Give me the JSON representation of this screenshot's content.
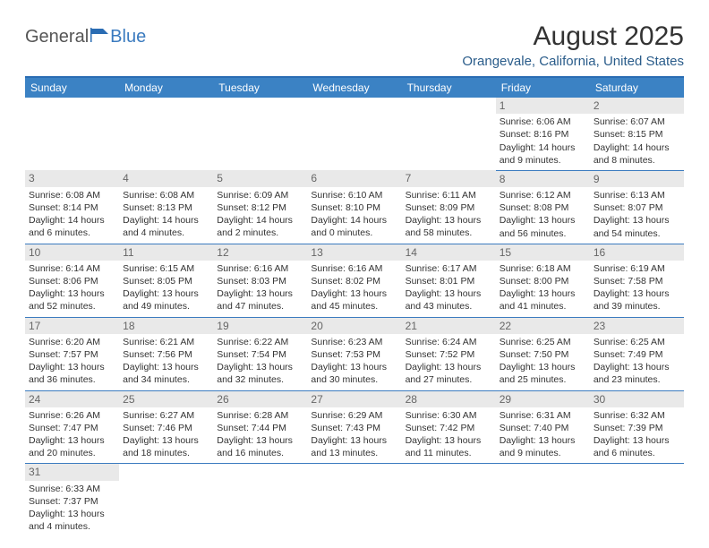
{
  "logo": {
    "text1": "General",
    "text2": "Blue",
    "icon_color": "#2a6cb3"
  },
  "title": "August 2025",
  "location": "Orangevale, California, United States",
  "header_bg": "#3b82c4",
  "header_text_color": "#ffffff",
  "border_color": "#3b7bbf",
  "daynum_bg": "#e9e9e9",
  "day_labels": [
    "Sunday",
    "Monday",
    "Tuesday",
    "Wednesday",
    "Thursday",
    "Friday",
    "Saturday"
  ],
  "weeks": [
    [
      null,
      null,
      null,
      null,
      null,
      {
        "n": "1",
        "sr": "6:06 AM",
        "ss": "8:16 PM",
        "dl": "14 hours and 9 minutes."
      },
      {
        "n": "2",
        "sr": "6:07 AM",
        "ss": "8:15 PM",
        "dl": "14 hours and 8 minutes."
      }
    ],
    [
      {
        "n": "3",
        "sr": "6:08 AM",
        "ss": "8:14 PM",
        "dl": "14 hours and 6 minutes."
      },
      {
        "n": "4",
        "sr": "6:08 AM",
        "ss": "8:13 PM",
        "dl": "14 hours and 4 minutes."
      },
      {
        "n": "5",
        "sr": "6:09 AM",
        "ss": "8:12 PM",
        "dl": "14 hours and 2 minutes."
      },
      {
        "n": "6",
        "sr": "6:10 AM",
        "ss": "8:10 PM",
        "dl": "14 hours and 0 minutes."
      },
      {
        "n": "7",
        "sr": "6:11 AM",
        "ss": "8:09 PM",
        "dl": "13 hours and 58 minutes."
      },
      {
        "n": "8",
        "sr": "6:12 AM",
        "ss": "8:08 PM",
        "dl": "13 hours and 56 minutes."
      },
      {
        "n": "9",
        "sr": "6:13 AM",
        "ss": "8:07 PM",
        "dl": "13 hours and 54 minutes."
      }
    ],
    [
      {
        "n": "10",
        "sr": "6:14 AM",
        "ss": "8:06 PM",
        "dl": "13 hours and 52 minutes."
      },
      {
        "n": "11",
        "sr": "6:15 AM",
        "ss": "8:05 PM",
        "dl": "13 hours and 49 minutes."
      },
      {
        "n": "12",
        "sr": "6:16 AM",
        "ss": "8:03 PM",
        "dl": "13 hours and 47 minutes."
      },
      {
        "n": "13",
        "sr": "6:16 AM",
        "ss": "8:02 PM",
        "dl": "13 hours and 45 minutes."
      },
      {
        "n": "14",
        "sr": "6:17 AM",
        "ss": "8:01 PM",
        "dl": "13 hours and 43 minutes."
      },
      {
        "n": "15",
        "sr": "6:18 AM",
        "ss": "8:00 PM",
        "dl": "13 hours and 41 minutes."
      },
      {
        "n": "16",
        "sr": "6:19 AM",
        "ss": "7:58 PM",
        "dl": "13 hours and 39 minutes."
      }
    ],
    [
      {
        "n": "17",
        "sr": "6:20 AM",
        "ss": "7:57 PM",
        "dl": "13 hours and 36 minutes."
      },
      {
        "n": "18",
        "sr": "6:21 AM",
        "ss": "7:56 PM",
        "dl": "13 hours and 34 minutes."
      },
      {
        "n": "19",
        "sr": "6:22 AM",
        "ss": "7:54 PM",
        "dl": "13 hours and 32 minutes."
      },
      {
        "n": "20",
        "sr": "6:23 AM",
        "ss": "7:53 PM",
        "dl": "13 hours and 30 minutes."
      },
      {
        "n": "21",
        "sr": "6:24 AM",
        "ss": "7:52 PM",
        "dl": "13 hours and 27 minutes."
      },
      {
        "n": "22",
        "sr": "6:25 AM",
        "ss": "7:50 PM",
        "dl": "13 hours and 25 minutes."
      },
      {
        "n": "23",
        "sr": "6:25 AM",
        "ss": "7:49 PM",
        "dl": "13 hours and 23 minutes."
      }
    ],
    [
      {
        "n": "24",
        "sr": "6:26 AM",
        "ss": "7:47 PM",
        "dl": "13 hours and 20 minutes."
      },
      {
        "n": "25",
        "sr": "6:27 AM",
        "ss": "7:46 PM",
        "dl": "13 hours and 18 minutes."
      },
      {
        "n": "26",
        "sr": "6:28 AM",
        "ss": "7:44 PM",
        "dl": "13 hours and 16 minutes."
      },
      {
        "n": "27",
        "sr": "6:29 AM",
        "ss": "7:43 PM",
        "dl": "13 hours and 13 minutes."
      },
      {
        "n": "28",
        "sr": "6:30 AM",
        "ss": "7:42 PM",
        "dl": "13 hours and 11 minutes."
      },
      {
        "n": "29",
        "sr": "6:31 AM",
        "ss": "7:40 PM",
        "dl": "13 hours and 9 minutes."
      },
      {
        "n": "30",
        "sr": "6:32 AM",
        "ss": "7:39 PM",
        "dl": "13 hours and 6 minutes."
      }
    ],
    [
      {
        "n": "31",
        "sr": "6:33 AM",
        "ss": "7:37 PM",
        "dl": "13 hours and 4 minutes."
      },
      null,
      null,
      null,
      null,
      null,
      null
    ]
  ],
  "labels": {
    "sunrise": "Sunrise:",
    "sunset": "Sunset:",
    "daylight": "Daylight:"
  }
}
